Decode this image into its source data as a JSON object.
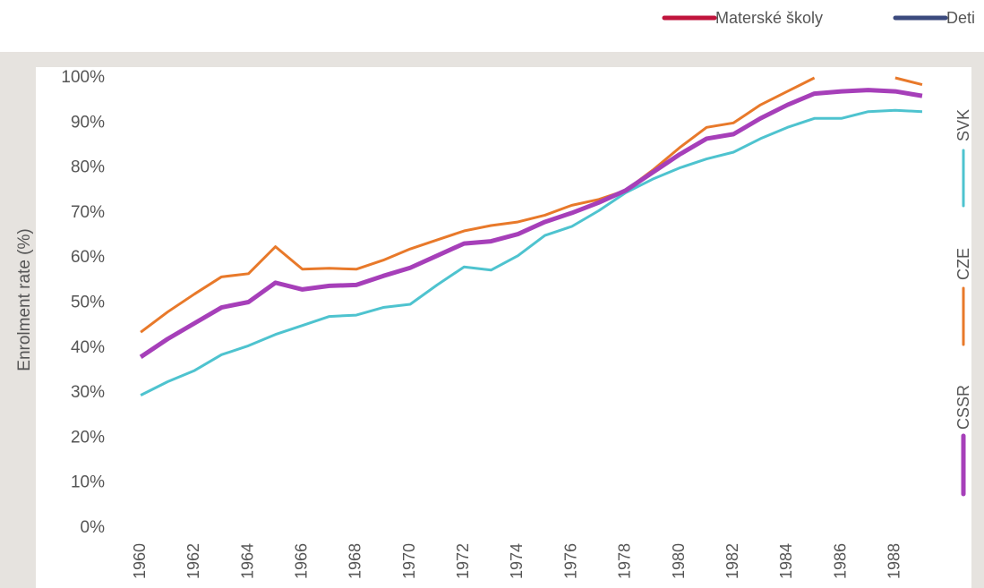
{
  "header_legend": [
    {
      "name": "Materské školy",
      "color": "#c0143c"
    },
    {
      "name": "Deti",
      "color": "#3b4a7e"
    }
  ],
  "chart_data": {
    "type": "line",
    "y_label": "Enrolment rate (%)",
    "x": [
      1960,
      1961,
      1962,
      1963,
      1964,
      1965,
      1966,
      1967,
      1968,
      1969,
      1970,
      1971,
      1972,
      1973,
      1974,
      1975,
      1976,
      1977,
      1978,
      1979,
      1980,
      1981,
      1982,
      1983,
      1984,
      1985,
      1986,
      1987,
      1988,
      1989
    ],
    "xlim": [
      1958.6,
      1989.5
    ],
    "xticks": [
      1960,
      1962,
      1964,
      1966,
      1968,
      1970,
      1972,
      1974,
      1976,
      1978,
      1980,
      1982,
      1984,
      1986,
      1988
    ],
    "ylim": [
      0,
      100
    ],
    "yticks": [
      {
        "value": 0,
        "label": "0%"
      },
      {
        "value": 10,
        "label": "10%"
      },
      {
        "value": 20,
        "label": "20%"
      },
      {
        "value": 30,
        "label": "30%"
      },
      {
        "value": 40,
        "label": "40%"
      },
      {
        "value": 50,
        "label": "50%"
      },
      {
        "value": 60,
        "label": "60%"
      },
      {
        "value": 70,
        "label": "70%"
      },
      {
        "value": 80,
        "label": "80%"
      },
      {
        "value": 90,
        "label": "90%"
      },
      {
        "value": 100,
        "label": "100%"
      }
    ],
    "grid": false,
    "legend": "right",
    "series": [
      {
        "name": "SVK",
        "color": "#4ec3cf",
        "width": 3,
        "values": [
          29.5,
          32.5,
          35,
          38.5,
          40.5,
          43,
          45,
          47,
          47.3,
          49,
          49.7,
          54,
          58,
          57.3,
          60.5,
          65,
          67,
          70.5,
          74.5,
          77.5,
          80,
          82,
          83.5,
          86.5,
          89,
          91,
          91,
          92.5,
          92.8,
          92.5
        ]
      },
      {
        "name": "CZE",
        "color": "#e8792a",
        "width": 3,
        "values": [
          43.5,
          48,
          52,
          55.8,
          56.5,
          62.5,
          57.5,
          57.7,
          57.5,
          59.5,
          62,
          64,
          66,
          67.2,
          68,
          69.5,
          71.7,
          73,
          75,
          79.5,
          84.5,
          89,
          90,
          94,
          97,
          100,
          null,
          null,
          100,
          98.5
        ]
      },
      {
        "name": "CSSR",
        "color": "#a63fb9",
        "width": 5,
        "values": [
          38,
          42,
          45.5,
          49,
          50.2,
          54.5,
          53,
          53.8,
          54,
          56,
          57.8,
          60.5,
          63.2,
          63.7,
          65.3,
          68,
          70,
          72.3,
          75,
          79,
          83,
          86.5,
          87.5,
          91,
          94,
          96.5,
          97,
          97.3,
          97,
          96
        ]
      }
    ]
  }
}
